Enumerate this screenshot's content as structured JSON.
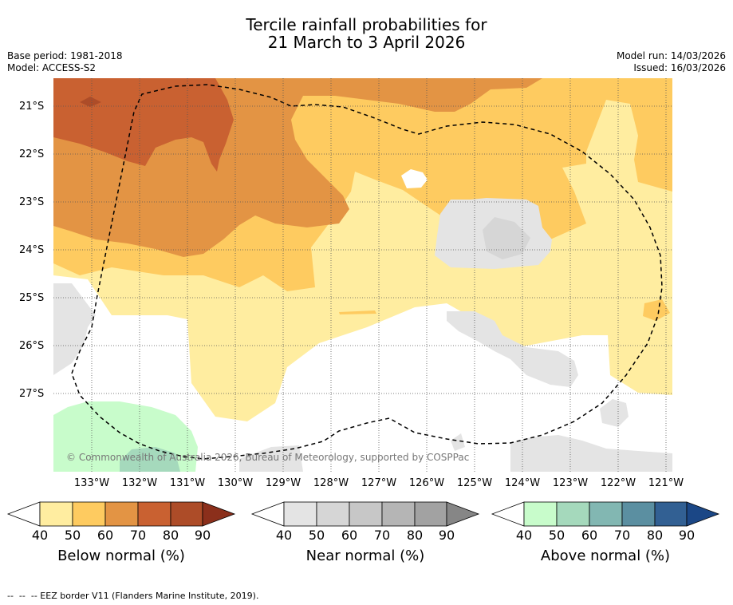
{
  "title": {
    "line1": "Tercile rainfall probabilities for",
    "line2": "21 March to 3 April 2026"
  },
  "meta": {
    "base_period": "Base period: 1981-2018",
    "model": "Model: ACCESS-S2",
    "model_run": "Model run: 14/03/2026",
    "issued": "Issued: 16/03/2026"
  },
  "map": {
    "lat_labels": [
      "21°S",
      "22°S",
      "23°S",
      "24°S",
      "25°S",
      "26°S",
      "27°S"
    ],
    "lon_labels": [
      "133°W",
      "132°W",
      "131°W",
      "130°W",
      "129°W",
      "128°W",
      "127°W",
      "126°W",
      "125°W",
      "124°W",
      "123°W",
      "122°W",
      "121°W"
    ],
    "credit": "© Commonwealth of Australia 2026, Bureau of Meteorology, supported by COSPPac",
    "colors": {
      "below": [
        "#ffeda0",
        "#fecb60",
        "#e39444",
        "#c96131",
        "#ad4c28",
        "#8b2f1b"
      ],
      "near": [
        "#e4e4e4",
        "#d6d6d6",
        "#c7c7c7",
        "#b5b5b5",
        "#a2a2a2",
        "#868686"
      ],
      "above": [
        "#c8fccb",
        "#a5d9bc",
        "#82b7b2",
        "#5b8fa1",
        "#326093",
        "#1b4786"
      ],
      "eez_line": "#000000",
      "grid_line": "#555555"
    }
  },
  "colorbars": {
    "ticks": [
      "40",
      "50",
      "60",
      "70",
      "80",
      "90"
    ],
    "below_label": "Below normal (%)",
    "near_label": "Near normal (%)",
    "above_label": "Above normal (%)"
  },
  "footer": "--  --  -- EEZ border V11 (Flanders Marine Institute, 2019)."
}
